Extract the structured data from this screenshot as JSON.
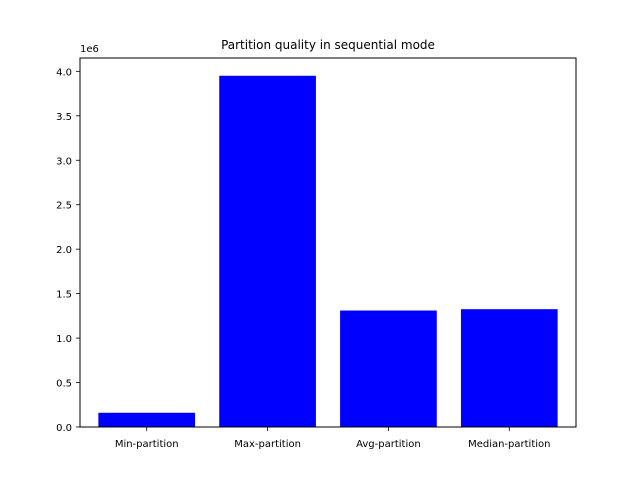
{
  "chart_data": {
    "type": "bar",
    "title": "Partition quality in sequential mode",
    "xlabel": "",
    "ylabel": "",
    "categories": [
      "Min-partition",
      "Max-partition",
      "Avg-partition",
      "Median-partition"
    ],
    "values": [
      160000,
      3950000,
      1310000,
      1325000
    ],
    "ylim": [
      0,
      4150000
    ],
    "y_ticks": [
      0,
      500000,
      1000000,
      1500000,
      2000000,
      2500000,
      3000000,
      3500000,
      4000000
    ],
    "y_tick_labels": [
      "0.0",
      "0.5",
      "1.0",
      "1.5",
      "2.0",
      "2.5",
      "3.0",
      "3.5",
      "4.0"
    ],
    "y_offset_label": "1e6",
    "bar_color": "#0000ff",
    "grid": false,
    "legend": "none"
  }
}
